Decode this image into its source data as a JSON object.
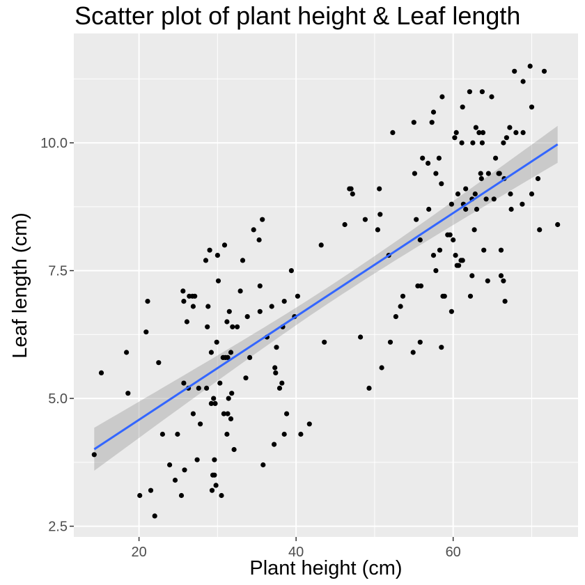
{
  "chart_data": {
    "type": "scatter",
    "title": "Scatter plot of plant height & Leaf length",
    "xlabel": "Plant height (cm)",
    "ylabel": "Leaf length (cm)",
    "xlim": [
      11.7,
      75.9
    ],
    "ylim": [
      2.29,
      12.14
    ],
    "x_ticks": [
      20,
      40,
      60
    ],
    "x_tick_labels": [
      "20",
      "40",
      "60"
    ],
    "y_ticks": [
      2.5,
      5.0,
      7.5,
      10.0
    ],
    "y_tick_labels": [
      "2.5",
      "5.0",
      "7.5",
      "10.0"
    ],
    "grid": true,
    "legend": "none",
    "colors": {
      "panel": "#ebebeb",
      "grid": "#ffffff",
      "points": "#000000",
      "line": "#3366ff",
      "ribbon": "#999999"
    },
    "series": [
      {
        "points": [
          [
            14.3,
            3.9
          ],
          [
            15.2,
            5.5
          ],
          [
            18.4,
            5.9
          ],
          [
            18.6,
            5.1
          ],
          [
            20.1,
            3.1
          ],
          [
            20.9,
            6.3
          ],
          [
            21.1,
            6.9
          ],
          [
            21.5,
            3.2
          ],
          [
            22.0,
            2.7
          ],
          [
            22.5,
            5.7
          ],
          [
            23.0,
            4.3
          ],
          [
            23.9,
            3.7
          ],
          [
            24.6,
            3.4
          ],
          [
            24.9,
            4.3
          ],
          [
            25.4,
            3.1
          ],
          [
            25.6,
            7.1
          ],
          [
            25.7,
            6.9
          ],
          [
            25.8,
            3.6
          ],
          [
            25.7,
            5.3
          ],
          [
            26.1,
            6.5
          ],
          [
            26.4,
            7.0
          ],
          [
            26.3,
            5.2
          ],
          [
            26.8,
            7.0
          ],
          [
            26.9,
            4.7
          ],
          [
            26.9,
            6.8
          ],
          [
            27.1,
            7.0
          ],
          [
            27.4,
            3.8
          ],
          [
            27.8,
            4.5
          ],
          [
            27.6,
            5.2
          ],
          [
            28.6,
            5.2
          ],
          [
            28.5,
            7.7
          ],
          [
            28.7,
            6.4
          ],
          [
            28.8,
            6.8
          ],
          [
            29.0,
            7.9
          ],
          [
            29.3,
            3.2
          ],
          [
            29.2,
            4.9
          ],
          [
            29.2,
            5.9
          ],
          [
            29.4,
            3.5
          ],
          [
            29.6,
            3.8
          ],
          [
            29.5,
            5.0
          ],
          [
            29.6,
            3.5
          ],
          [
            29.7,
            4.9
          ],
          [
            29.9,
            6.1
          ],
          [
            29.8,
            3.3
          ],
          [
            30.0,
            7.8
          ],
          [
            30.1,
            7.3
          ],
          [
            30.3,
            5.3
          ],
          [
            30.5,
            3.1
          ],
          [
            30.7,
            5.8
          ],
          [
            30.8,
            4.7
          ],
          [
            30.9,
            8.0
          ],
          [
            31.0,
            5.8
          ],
          [
            31.2,
            6.5
          ],
          [
            31.3,
            4.7
          ],
          [
            31.3,
            5.8
          ],
          [
            31.2,
            4.3
          ],
          [
            31.4,
            5.0
          ],
          [
            31.5,
            6.7
          ],
          [
            31.7,
            4.6
          ],
          [
            31.8,
            5.1
          ],
          [
            31.7,
            5.9
          ],
          [
            31.9,
            6.4
          ],
          [
            32.1,
            4.0
          ],
          [
            32.5,
            6.4
          ],
          [
            32.9,
            7.1
          ],
          [
            33.2,
            7.7
          ],
          [
            33.6,
            5.4
          ],
          [
            33.8,
            6.6
          ],
          [
            34.1,
            5.8
          ],
          [
            34.6,
            8.3
          ],
          [
            35.3,
            8.1
          ],
          [
            35.4,
            7.2
          ],
          [
            35.4,
            6.7
          ],
          [
            35.7,
            8.5
          ],
          [
            35.8,
            3.7
          ],
          [
            36.3,
            6.2
          ],
          [
            36.9,
            6.8
          ],
          [
            37.2,
            4.1
          ],
          [
            37.3,
            5.6
          ],
          [
            37.4,
            5.5
          ],
          [
            37.5,
            6.0
          ],
          [
            37.9,
            5.2
          ],
          [
            38.2,
            5.3
          ],
          [
            38.3,
            6.4
          ],
          [
            38.5,
            6.9
          ],
          [
            38.5,
            4.3
          ],
          [
            38.8,
            4.7
          ],
          [
            39.4,
            7.5
          ],
          [
            39.8,
            6.6
          ],
          [
            40.2,
            7.0
          ],
          [
            40.6,
            4.3
          ],
          [
            41.7,
            4.5
          ],
          [
            43.2,
            8.0
          ],
          [
            43.6,
            6.1
          ],
          [
            46.2,
            8.4
          ],
          [
            46.8,
            9.1
          ],
          [
            47.0,
            9.1
          ],
          [
            47.2,
            9.0
          ],
          [
            48.2,
            6.2
          ],
          [
            48.8,
            8.5
          ],
          [
            49.3,
            5.2
          ],
          [
            50.4,
            8.3
          ],
          [
            50.6,
            9.1
          ],
          [
            50.7,
            8.6
          ],
          [
            50.9,
            5.6
          ],
          [
            51.8,
            7.8
          ],
          [
            52.0,
            6.1
          ],
          [
            52.3,
            10.2
          ],
          [
            52.7,
            6.6
          ],
          [
            53.3,
            6.8
          ],
          [
            53.6,
            7.0
          ],
          [
            54.9,
            5.9
          ],
          [
            55.0,
            10.4
          ],
          [
            55.1,
            9.4
          ],
          [
            55.3,
            8.5
          ],
          [
            55.5,
            7.2
          ],
          [
            55.8,
            8.1
          ],
          [
            55.8,
            6.1
          ],
          [
            55.9,
            7.2
          ],
          [
            56.1,
            9.7
          ],
          [
            56.8,
            9.6
          ],
          [
            56.9,
            8.7
          ],
          [
            57.3,
            10.4
          ],
          [
            57.5,
            10.6
          ],
          [
            57.5,
            7.8
          ],
          [
            57.8,
            7.5
          ],
          [
            57.8,
            9.4
          ],
          [
            58.2,
            9.7
          ],
          [
            58.3,
            7.9
          ],
          [
            58.6,
            10.9
          ],
          [
            58.5,
            9.2
          ],
          [
            58.5,
            6.0
          ],
          [
            58.7,
            7.0
          ],
          [
            58.9,
            7.0
          ],
          [
            59.3,
            8.2
          ],
          [
            59.6,
            8.2
          ],
          [
            59.8,
            6.7
          ],
          [
            59.8,
            8.8
          ],
          [
            60.0,
            8.1
          ],
          [
            60.2,
            10.1
          ],
          [
            60.3,
            7.8
          ],
          [
            60.4,
            10.2
          ],
          [
            60.5,
            7.6
          ],
          [
            60.6,
            9.0
          ],
          [
            60.7,
            7.6
          ],
          [
            61.0,
            7.7
          ],
          [
            61.2,
            7.7
          ],
          [
            61.1,
            10.0
          ],
          [
            61.2,
            10.7
          ],
          [
            61.3,
            8.8
          ],
          [
            61.6,
            8.7
          ],
          [
            61.6,
            9.1
          ],
          [
            62.1,
            11.0
          ],
          [
            62.2,
            7.0
          ],
          [
            62.4,
            7.4
          ],
          [
            62.4,
            8.9
          ],
          [
            62.5,
            10.0
          ],
          [
            62.7,
            8.3
          ],
          [
            62.8,
            9.0
          ],
          [
            62.9,
            10.3
          ],
          [
            63.0,
            8.7
          ],
          [
            63.3,
            10.2
          ],
          [
            63.5,
            9.4
          ],
          [
            63.7,
            11.0
          ],
          [
            63.6,
            9.3
          ],
          [
            63.7,
            10.0
          ],
          [
            63.8,
            10.2
          ],
          [
            63.9,
            7.9
          ],
          [
            64.2,
            8.9
          ],
          [
            64.4,
            7.3
          ],
          [
            64.5,
            9.4
          ],
          [
            64.9,
            10.9
          ],
          [
            65.2,
            8.9
          ],
          [
            65.4,
            9.7
          ],
          [
            65.8,
            9.4
          ],
          [
            65.9,
            9.4
          ],
          [
            66.1,
            7.9
          ],
          [
            66.1,
            7.4
          ],
          [
            66.4,
            10.0
          ],
          [
            66.5,
            9.3
          ],
          [
            66.4,
            7.3
          ],
          [
            66.6,
            6.9
          ],
          [
            66.8,
            10.1
          ],
          [
            67.2,
            10.3
          ],
          [
            67.3,
            9.0
          ],
          [
            67.4,
            8.7
          ],
          [
            67.8,
            11.4
          ],
          [
            68.0,
            10.2
          ],
          [
            68.9,
            10.2
          ],
          [
            68.8,
            8.8
          ],
          [
            68.9,
            11.2
          ],
          [
            69.8,
            11.5
          ],
          [
            70.0,
            10.7
          ],
          [
            70.0,
            9.0
          ],
          [
            70.8,
            9.3
          ],
          [
            71.0,
            8.3
          ],
          [
            71.6,
            11.4
          ],
          [
            73.3,
            8.4
          ]
        ]
      }
    ],
    "trend": {
      "method": "lm",
      "intercept": 2.56,
      "slope": 0.1011,
      "x_range": [
        14.3,
        73.3
      ],
      "se_ends": [
        0.42,
        0.36
      ],
      "se_min": 0.16,
      "x_center": 45.0
    }
  }
}
